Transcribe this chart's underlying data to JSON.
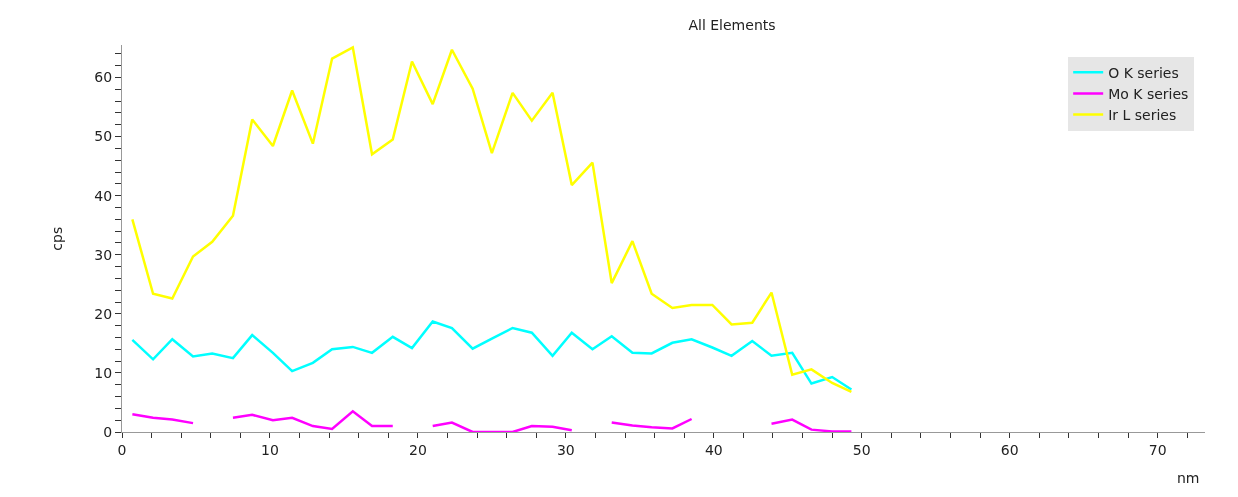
{
  "chart_data": {
    "type": "line",
    "title": "All Elements",
    "xlabel": "nm",
    "ylabel": "cps",
    "x": [
      0.7,
      2.1,
      3.4,
      4.8,
      6.1,
      7.5,
      8.8,
      10.2,
      11.5,
      12.9,
      14.2,
      15.6,
      16.9,
      18.3,
      19.6,
      21.0,
      22.3,
      23.7,
      25.0,
      26.4,
      27.7,
      29.1,
      30.4,
      31.8,
      33.1,
      34.5,
      35.8,
      37.2,
      38.5,
      39.9,
      41.2,
      42.6,
      43.9,
      45.3,
      46.6,
      48.0,
      49.3
    ],
    "series": [
      {
        "name": "O K series",
        "color": "#00ffff",
        "values": [
          15.6,
          12.3,
          15.7,
          12.8,
          13.3,
          12.5,
          16.4,
          13.4,
          10.3,
          11.7,
          14.0,
          14.4,
          13.4,
          16.1,
          14.2,
          18.7,
          17.6,
          14.1,
          15.8,
          17.6,
          16.8,
          12.9,
          16.8,
          14.0,
          16.2,
          13.4,
          13.3,
          15.1,
          15.7,
          14.3,
          12.9,
          15.4,
          12.9,
          13.4,
          8.2,
          9.3,
          7.2
        ]
      },
      {
        "name": "Mo K series",
        "color": "#ff00ff",
        "values": [
          3.0,
          2.4,
          2.1,
          1.5,
          null,
          2.4,
          2.9,
          2.0,
          2.4,
          1.0,
          0.5,
          3.5,
          1.0,
          1.0,
          null,
          1.0,
          1.6,
          0,
          0,
          0,
          1.0,
          0.9,
          0.3,
          null,
          1.6,
          1.1,
          0.8,
          0.6,
          2.2,
          null,
          null,
          null,
          1.4,
          2.1,
          0.4,
          0.1,
          0.1
        ]
      },
      {
        "name": "Ir L series",
        "color": "#ffff00",
        "values": [
          36.0,
          23.4,
          22.6,
          29.7,
          32.2,
          36.6,
          52.9,
          48.4,
          57.8,
          48.8,
          63.2,
          65.1,
          47.0,
          49.5,
          62.7,
          55.5,
          64.7,
          58.1,
          47.2,
          57.4,
          52.7,
          57.4,
          41.8,
          45.6,
          25.2,
          32.3,
          23.4,
          21.0,
          21.5,
          21.5,
          18.2,
          18.5,
          23.6,
          9.7,
          10.6,
          8.3,
          6.8
        ]
      }
    ],
    "xlim": [
      0,
      73.2
    ],
    "ylim": [
      0,
      65.5
    ],
    "xticks": [
      0,
      {
        "value": 2,
        "label": null
      },
      {
        "value": 4,
        "label": null
      },
      {
        "value": 6,
        "label": null
      },
      {
        "value": 8,
        "label": null
      },
      10,
      {
        "value": 12,
        "label": null
      },
      {
        "value": 14,
        "label": null
      },
      {
        "value": 16,
        "label": null
      },
      {
        "value": 18,
        "label": null
      },
      20,
      {
        "value": 22,
        "label": null
      },
      {
        "value": 24,
        "label": null
      },
      {
        "value": 26,
        "label": null
      },
      {
        "value": 28,
        "label": null
      },
      30,
      {
        "value": 32,
        "label": null
      },
      {
        "value": 34,
        "label": null
      },
      {
        "value": 36,
        "label": null
      },
      {
        "value": 38,
        "label": null
      },
      40,
      {
        "value": 42,
        "label": null
      },
      {
        "value": 44,
        "label": null
      },
      {
        "value": 46,
        "label": null
      },
      {
        "value": 48,
        "label": null
      },
      50,
      {
        "value": 52,
        "label": null
      },
      {
        "value": 54,
        "label": null
      },
      {
        "value": 56,
        "label": null
      },
      {
        "value": 58,
        "label": null
      },
      60,
      {
        "value": 62,
        "label": null
      },
      {
        "value": 64,
        "label": null
      },
      {
        "value": 66,
        "label": null
      },
      {
        "value": 68,
        "label": null
      },
      70,
      {
        "value": 72,
        "label": null
      }
    ],
    "yticks": [
      0,
      {
        "value": 2,
        "label": null
      },
      {
        "value": 4,
        "label": null
      },
      {
        "value": 6,
        "label": null
      },
      {
        "value": 8,
        "label": null
      },
      10,
      {
        "value": 12,
        "label": null
      },
      {
        "value": 14,
        "label": null
      },
      {
        "value": 16,
        "label": null
      },
      {
        "value": 18,
        "label": null
      },
      20,
      {
        "value": 22,
        "label": null
      },
      {
        "value": 24,
        "label": null
      },
      {
        "value": 26,
        "label": null
      },
      {
        "value": 28,
        "label": null
      },
      30,
      {
        "value": 32,
        "label": null
      },
      {
        "value": 34,
        "label": null
      },
      {
        "value": 36,
        "label": null
      },
      {
        "value": 38,
        "label": null
      },
      40,
      {
        "value": 42,
        "label": null
      },
      {
        "value": 44,
        "label": null
      },
      {
        "value": 46,
        "label": null
      },
      {
        "value": 48,
        "label": null
      },
      50,
      {
        "value": 52,
        "label": null
      },
      {
        "value": 54,
        "label": null
      },
      {
        "value": 56,
        "label": null
      },
      {
        "value": 58,
        "label": null
      },
      60,
      {
        "value": 62,
        "label": null
      },
      {
        "value": 64,
        "label": null
      }
    ],
    "legend": "top right",
    "marker": "none",
    "line_style": "solid"
  }
}
